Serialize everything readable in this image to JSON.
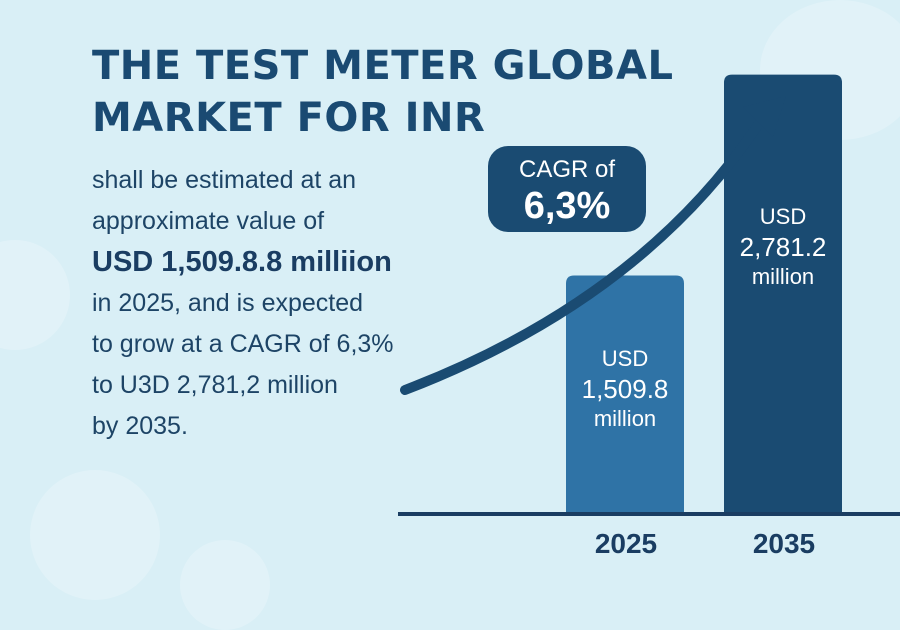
{
  "colors": {
    "background": "#d9eff6",
    "title": "#1a4a72",
    "bar_2025": "#2f73a6",
    "bar_2035": "#1a4b72",
    "arrow": "#1a4b72",
    "axis": "#1a3d62"
  },
  "title": {
    "line1": "THE TEST METER GLOBAL",
    "line2": "MARKET FOR INR"
  },
  "body": {
    "line1": "shall be estimated at an",
    "line2": "approximate value of",
    "line3": "USD 1,509.8.8 milliion",
    "line4": "in 2025, and is expected",
    "line5": "to grow at a CAGR of 6,3%",
    "line6": "to U3D 2,781,2 million",
    "line7": "by 2035."
  },
  "cagr_callout": {
    "line1": "CAGR of",
    "line2": "6,3%",
    "icon": "trend-up-arrow-icon"
  },
  "bar_labels": [
    {
      "line1": "USD",
      "line2": "1,509.8",
      "line3": "million"
    },
    {
      "line1": "USD",
      "line2": "2,781.2",
      "line3": "million"
    }
  ],
  "chart_data": {
    "type": "bar",
    "categories": [
      "2025",
      "2035"
    ],
    "values": [
      1509.8,
      2781.2
    ],
    "unit": "USD million",
    "ylim": [
      0,
      3000
    ],
    "grid": false,
    "legend": "none"
  }
}
